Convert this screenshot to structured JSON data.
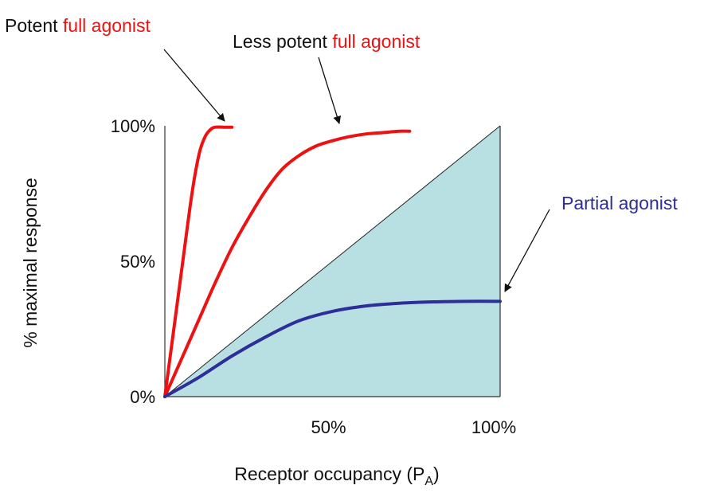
{
  "chart_data": {
    "type": "line",
    "xlabel_main": "Receptor occupancy (P",
    "xlabel_sub": "A",
    "xlabel_end": ")",
    "ylabel": "% maximal response",
    "xlim": [
      0,
      100
    ],
    "ylim": [
      0,
      100
    ],
    "x_ticks": [
      {
        "value": 50,
        "label": "50%"
      },
      {
        "value": 100,
        "label": "100%"
      }
    ],
    "y_ticks": [
      {
        "value": 0,
        "label": "0%"
      },
      {
        "value": 50,
        "label": "50%"
      },
      {
        "value": 100,
        "label": "100%"
      }
    ],
    "series": [
      {
        "key": "potent",
        "color": "#ee1111",
        "points": [
          [
            0,
            0
          ],
          [
            1.5,
            14
          ],
          [
            3,
            28
          ],
          [
            4.5,
            42
          ],
          [
            6,
            56
          ],
          [
            7.5,
            70
          ],
          [
            9,
            82
          ],
          [
            10.5,
            91
          ],
          [
            12,
            96
          ],
          [
            13.5,
            98.5
          ],
          [
            15,
            99.5
          ],
          [
            18,
            99.5
          ],
          [
            20,
            99.5
          ]
        ]
      },
      {
        "key": "less-potent",
        "color": "#ee1111",
        "points": [
          [
            0,
            0
          ],
          [
            5,
            14
          ],
          [
            10,
            28
          ],
          [
            15,
            42
          ],
          [
            20,
            55
          ],
          [
            25,
            66
          ],
          [
            30,
            76
          ],
          [
            35,
            84
          ],
          [
            40,
            89
          ],
          [
            45,
            92.5
          ],
          [
            50,
            94.5
          ],
          [
            55,
            96
          ],
          [
            60,
            97
          ],
          [
            65,
            97.5
          ],
          [
            70,
            98
          ],
          [
            73,
            98
          ]
        ]
      },
      {
        "key": "partial",
        "color": "#2e2e9a",
        "points": [
          [
            0,
            0
          ],
          [
            10,
            7
          ],
          [
            20,
            15
          ],
          [
            30,
            22
          ],
          [
            40,
            28
          ],
          [
            50,
            31.5
          ],
          [
            60,
            33.5
          ],
          [
            70,
            34.5
          ],
          [
            80,
            35
          ],
          [
            90,
            35.2
          ],
          [
            100,
            35.2
          ]
        ]
      }
    ],
    "diagonal": {
      "from": [
        0,
        0
      ],
      "to": [
        100,
        100
      ],
      "fill": "#b8dfe1"
    },
    "annotations": {
      "potent_prefix": "Potent ",
      "potent_suffix": "full agonist",
      "less_potent_prefix": "Less potent ",
      "less_potent_suffix": "full agonist",
      "partial": "Partial agonist"
    },
    "annotation_colors": {
      "black": "#111111",
      "red": "#ee1111",
      "blue": "#2e2e9a"
    }
  }
}
